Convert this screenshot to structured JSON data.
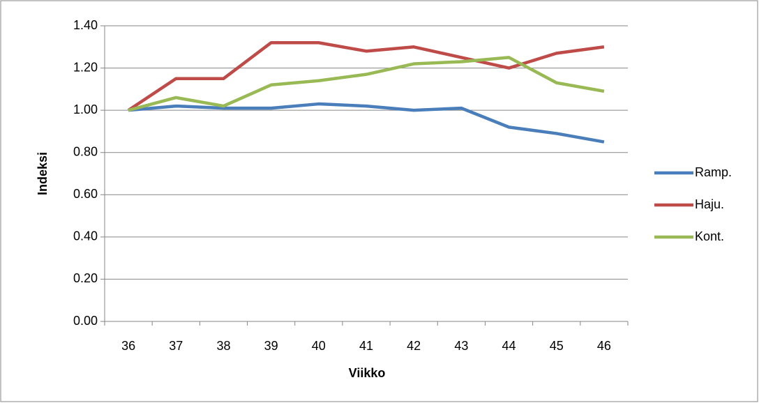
{
  "chart_data": {
    "type": "line",
    "x_label": "Viikko",
    "y_label": "Indeksi",
    "categories": [
      "36",
      "37",
      "38",
      "39",
      "40",
      "41",
      "42",
      "43",
      "44",
      "45",
      "46"
    ],
    "series": [
      {
        "name": "Ramp.",
        "color": "#4a7ebb",
        "values": [
          1.0,
          1.02,
          1.01,
          1.01,
          1.03,
          1.02,
          1.0,
          1.01,
          0.92,
          0.89,
          0.85
        ]
      },
      {
        "name": "Haju.",
        "color": "#be4b48",
        "values": [
          1.0,
          1.15,
          1.15,
          1.32,
          1.32,
          1.28,
          1.3,
          1.25,
          1.2,
          1.27,
          1.3
        ]
      },
      {
        "name": "Kont.",
        "color": "#98b954",
        "values": [
          1.0,
          1.06,
          1.02,
          1.12,
          1.14,
          1.17,
          1.22,
          1.23,
          1.25,
          1.13,
          1.09
        ]
      }
    ],
    "ylim": [
      0,
      1.4
    ],
    "yticks": [
      {
        "value": 0,
        "label": "0.00"
      },
      {
        "value": 0.2,
        "label": "0.20"
      },
      {
        "value": 0.4,
        "label": "0.40"
      },
      {
        "value": 0.6,
        "label": "0.60"
      },
      {
        "value": 0.8,
        "label": "0.80"
      },
      {
        "value": 1.0,
        "label": "1.00"
      },
      {
        "value": 1.2,
        "label": "1.20"
      },
      {
        "value": 1.4,
        "label": "1.40"
      }
    ],
    "grid": true,
    "legend": "right"
  }
}
